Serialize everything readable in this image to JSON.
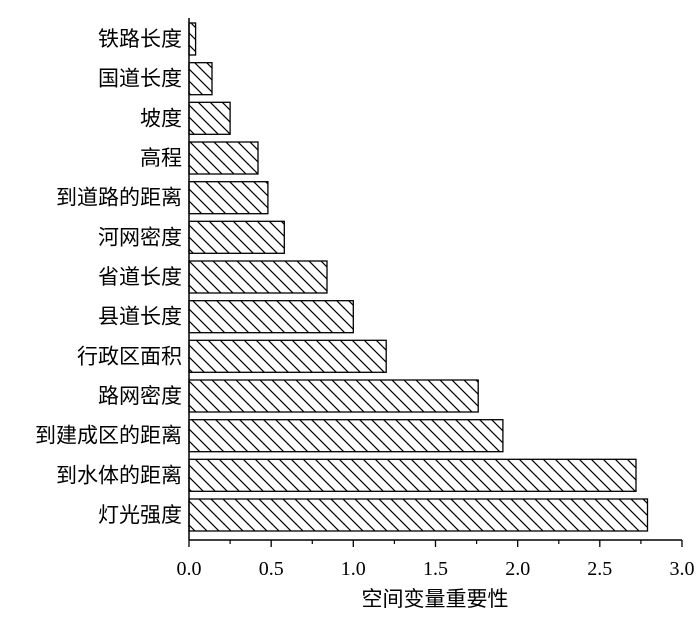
{
  "chart_data": {
    "type": "bar",
    "orientation": "horizontal",
    "title": "",
    "xlabel": "空间变量重要性",
    "ylabel": "",
    "xlim": [
      0,
      3.0
    ],
    "xticks": [
      "0.0",
      "0.5",
      "1.0",
      "1.5",
      "2.0",
      "2.5",
      "3.0"
    ],
    "grid": false,
    "bar_fill": "hatched",
    "categories": [
      "铁路长度",
      "国道长度",
      "坡度",
      "高程",
      "到道路的距离",
      "河网密度",
      "省道长度",
      "县道长度",
      "行政区面积",
      "路网密度",
      "到建成区的距离",
      "到水体的距离",
      "灯光强度"
    ],
    "values": [
      0.04,
      0.14,
      0.25,
      0.42,
      0.48,
      0.58,
      0.84,
      1.0,
      1.2,
      1.76,
      1.91,
      2.72,
      2.79
    ]
  }
}
